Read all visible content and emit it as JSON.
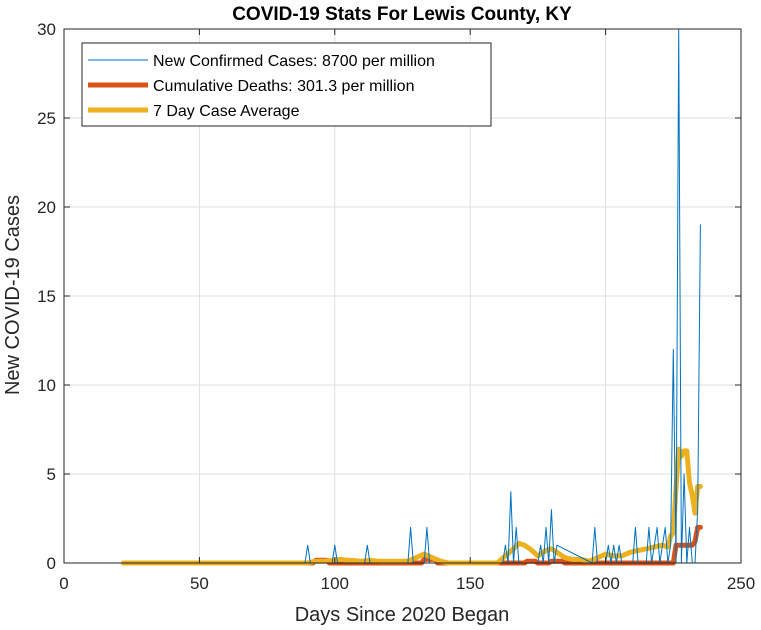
{
  "chart_data": {
    "type": "line",
    "title": "COVID-19 Stats For Lewis County, KY",
    "xlabel": "Days Since 2020 Began",
    "ylabel": "New COVID-19 Cases",
    "xlim": [
      0,
      250
    ],
    "ylim": [
      0,
      30
    ],
    "xticks": [
      0,
      50,
      100,
      150,
      200,
      250
    ],
    "yticks": [
      0,
      5,
      10,
      15,
      20,
      25,
      30
    ],
    "grid": true,
    "legend_position": "top-left",
    "series": [
      {
        "name": "New Confirmed Cases: 8700 per million",
        "color": "#0072BD",
        "style": "thin",
        "x": [
          22,
          89,
          90,
          91,
          99,
          100,
          101,
          111,
          112,
          113,
          127,
          128,
          129,
          133,
          134,
          135,
          162,
          163,
          164,
          165,
          166,
          167,
          168,
          175,
          176,
          177,
          178,
          179,
          180,
          181,
          182,
          195,
          196,
          197,
          200,
          201,
          202,
          203,
          204,
          205,
          206,
          210,
          211,
          212,
          215,
          216,
          217,
          219,
          220,
          221,
          222,
          223,
          224,
          225,
          226,
          227,
          228,
          229,
          230,
          231,
          232,
          233,
          234,
          235
        ],
        "y": [
          0,
          0,
          1,
          0,
          0,
          1,
          0,
          0,
          1,
          0,
          0,
          2,
          0,
          0,
          2,
          0,
          0,
          1,
          0,
          4,
          0,
          2,
          0,
          0,
          1,
          0,
          2,
          0,
          3,
          0,
          1,
          0,
          2,
          0,
          0,
          1,
          0,
          1,
          0,
          1,
          0,
          0,
          2,
          0,
          0,
          2,
          0,
          2,
          0,
          1,
          2,
          0,
          1,
          12,
          0,
          30,
          0,
          5,
          0,
          2,
          0,
          0,
          3,
          19
        ]
      },
      {
        "name": "Cumulative Deaths: 301.3 per million",
        "color": "#D95319",
        "style": "thick",
        "x": [
          22,
          92,
          93,
          97,
          98,
          132,
          133,
          137,
          138,
          170,
          171,
          174,
          175,
          179,
          180,
          184,
          185,
          225,
          226,
          232,
          233,
          234,
          235
        ],
        "y": [
          0,
          0,
          0.15,
          0.15,
          0,
          0,
          0.2,
          0.2,
          0,
          0,
          0.1,
          0.1,
          0,
          0,
          0.1,
          0.1,
          0,
          0,
          1,
          1,
          1.2,
          2,
          2
        ]
      },
      {
        "name": "7 Day Case Average",
        "color": "#EDB120",
        "style": "thick",
        "x": [
          22,
          90,
          93,
          96,
          99,
          102,
          105,
          110,
          113,
          116,
          127,
          130,
          133,
          136,
          139,
          142,
          160,
          163,
          166,
          168,
          170,
          172,
          175,
          178,
          180,
          182,
          185,
          188,
          191,
          194,
          197,
          200,
          203,
          206,
          209,
          212,
          215,
          218,
          221,
          223,
          224,
          225,
          226,
          227,
          228,
          229,
          230,
          231,
          232,
          233,
          234,
          235
        ],
        "y": [
          0,
          0,
          0.1,
          0.1,
          0.15,
          0.2,
          0.15,
          0.1,
          0.15,
          0.1,
          0.1,
          0.3,
          0.5,
          0.3,
          0.1,
          0,
          0,
          0.4,
          0.8,
          1.1,
          1.0,
          0.8,
          0.4,
          0.7,
          0.8,
          0.6,
          0.3,
          0.2,
          0.2,
          0.1,
          0.3,
          0.5,
          0.4,
          0.4,
          0.6,
          0.7,
          0.8,
          0.9,
          1.0,
          0.9,
          1.5,
          1.7,
          4.2,
          6.4,
          6.0,
          6.3,
          6.3,
          4.5,
          3.8,
          2.8,
          4.3,
          4.3
        ]
      }
    ]
  }
}
